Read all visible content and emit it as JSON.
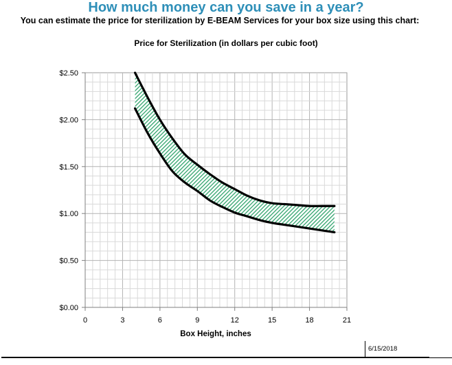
{
  "header": {
    "title": "How much money can you save in a year?",
    "subtitle": "You can estimate the price for sterilization by E-BEAM Services for your box size using this chart:"
  },
  "footer": {
    "date": "6/15/2018"
  },
  "chart_data": {
    "type": "area",
    "title": "Price for Sterilization (in dollars per cubic foot)",
    "xlabel": "Box Height, inches",
    "ylabel": "",
    "xlim": [
      0,
      21
    ],
    "ylim": [
      0,
      2.5
    ],
    "x_ticks": [
      0,
      3,
      6,
      9,
      12,
      15,
      18,
      21
    ],
    "x_tick_labels": [
      "0",
      "3",
      "6",
      "9",
      "12",
      "15",
      "18",
      "21"
    ],
    "y_ticks": [
      0,
      0.5,
      1.0,
      1.5,
      2.0,
      2.5
    ],
    "y_tick_labels": [
      "$0.00",
      "$0.50",
      "$1.00",
      "$1.50",
      "$2.00",
      "$2.50"
    ],
    "grid": true,
    "fill_color": "#6fcf9f",
    "series": [
      {
        "x": [
          4,
          5,
          6,
          7,
          8,
          9,
          10,
          11,
          12,
          13,
          14,
          15,
          16,
          17,
          18,
          19,
          20
        ],
        "values": [
          2.5,
          2.24,
          2.0,
          1.8,
          1.63,
          1.52,
          1.42,
          1.33,
          1.26,
          1.19,
          1.14,
          1.11,
          1.1,
          1.09,
          1.08,
          1.08,
          1.08
        ]
      },
      {
        "x": [
          4,
          5,
          6,
          7,
          8,
          9,
          10,
          11,
          12,
          13,
          14,
          15,
          16,
          17,
          18,
          19,
          20
        ],
        "values": [
          2.12,
          1.86,
          1.64,
          1.45,
          1.33,
          1.24,
          1.14,
          1.07,
          1.01,
          0.97,
          0.93,
          0.9,
          0.88,
          0.86,
          0.84,
          0.82,
          0.8
        ]
      }
    ]
  }
}
